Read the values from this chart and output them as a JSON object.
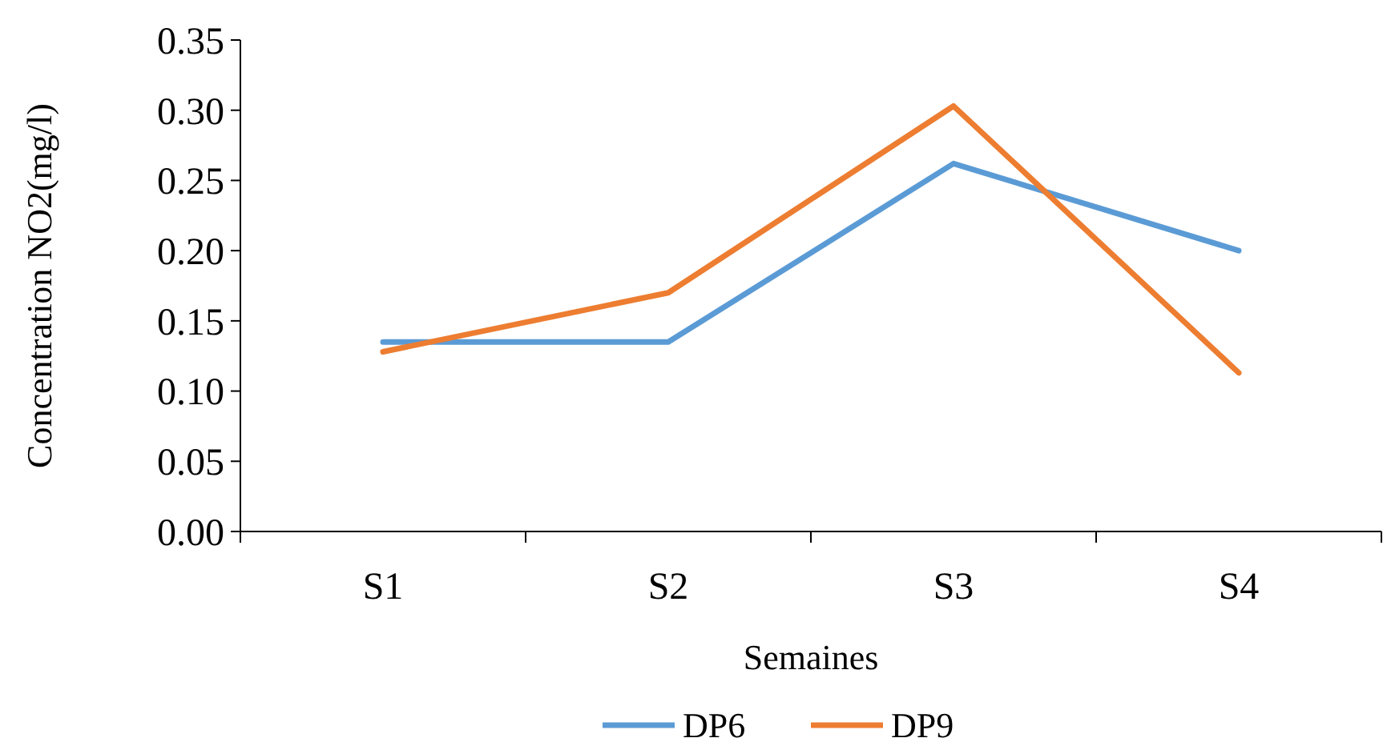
{
  "chart_data": {
    "type": "line",
    "xlabel": "Semaines",
    "ylabel": "Concentration NO2(mg/l)",
    "categories": [
      "S1",
      "S2",
      "S3",
      "S4"
    ],
    "series": [
      {
        "name": "DP6",
        "color": "#5b9bd5",
        "values": [
          0.135,
          0.135,
          0.262,
          0.2
        ]
      },
      {
        "name": "DP9",
        "color": "#ed7d31",
        "values": [
          0.128,
          0.17,
          0.303,
          0.113
        ]
      }
    ],
    "ylim": [
      0,
      0.35
    ],
    "yticks": [
      {
        "value": 0,
        "label": "0.00"
      },
      {
        "value": 0.05,
        "label": "0.05"
      },
      {
        "value": 0.1,
        "label": "0.10"
      },
      {
        "value": 0.15,
        "label": "0.15"
      },
      {
        "value": 0.2,
        "label": "0.20"
      },
      {
        "value": 0.25,
        "label": "0.25"
      },
      {
        "value": 0.3,
        "label": "0.30"
      },
      {
        "value": 0.35,
        "label": "0.35"
      }
    ],
    "grid": false,
    "legend": "bottom",
    "marker": "none",
    "line_style": "solid"
  }
}
